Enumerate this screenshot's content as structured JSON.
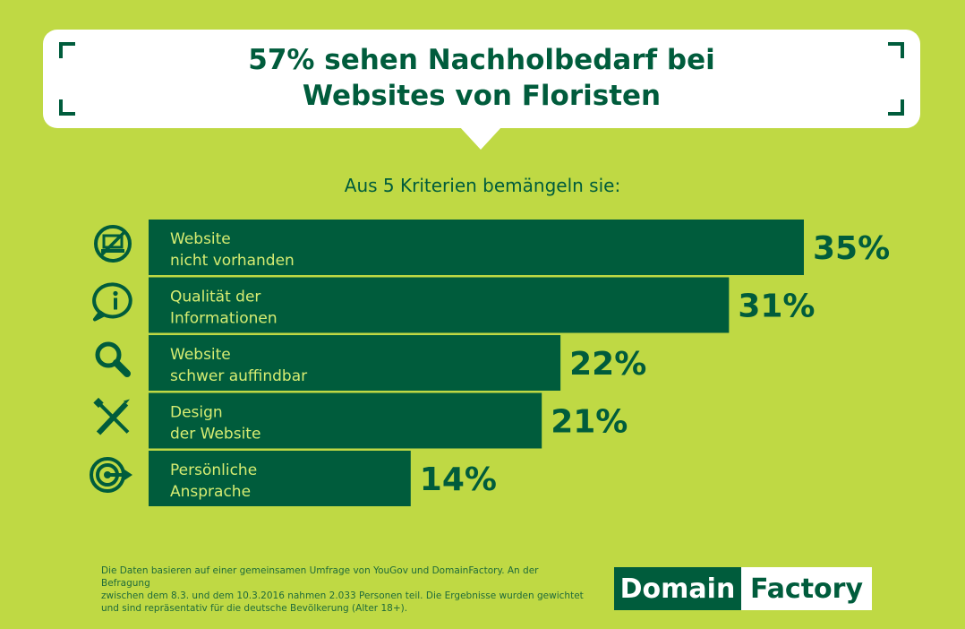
{
  "header": {
    "title_line1": "57% sehen Nachholbedarf bei",
    "title_line2": "Websites von Floristen",
    "subtitle": "Aus 5 Kriterien bemängeln sie:"
  },
  "chart_data": {
    "type": "bar",
    "orientation": "horizontal",
    "categories": [
      [
        "Website",
        "nicht vorhanden"
      ],
      [
        "Qualität der",
        "Informationen"
      ],
      [
        "Website",
        "schwer auffindbar"
      ],
      [
        "Design",
        "der Website"
      ],
      [
        "Persönliche",
        "Ansprache"
      ]
    ],
    "values": [
      35,
      31,
      22,
      21,
      14
    ],
    "value_labels": [
      "35%",
      "31%",
      "22%",
      "21%",
      "14%"
    ],
    "icons": [
      "no-computer-icon",
      "info-speech-icon",
      "magnifier-icon",
      "design-tools-icon",
      "target-arrow-icon"
    ],
    "bar_color": "#005c3c",
    "label_color": "#d6ec72"
  },
  "footer": {
    "footnote_lines": [
      "Die Daten basieren auf einer gemeinsamen Umfrage von YouGov und DomainFactory. An der Befragung",
      "zwischen dem 8.3. und dem 10.3.2016 nahmen 2.033 Personen teil. Die Ergebnisse wurden gewichtet",
      "und sind repräsentativ für die deutsche Bevölkerung (Alter 18+)."
    ],
    "logo_part1": "Domain",
    "logo_part2": "Factory"
  }
}
